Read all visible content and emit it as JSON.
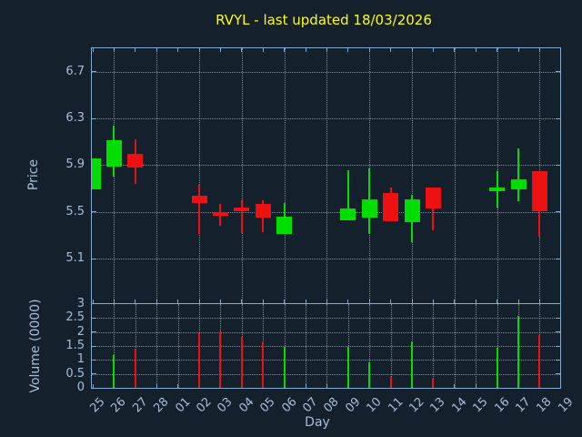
{
  "title": "RVYL - last updated 18/03/2026",
  "colors": {
    "background": "#15202d",
    "axis": "#86aacd",
    "text": "#a6bed8",
    "grid": "#dde6ee",
    "title": "#ffff00",
    "up": "#00dd00",
    "down": "#ee1111"
  },
  "chart_data": {
    "type": "candlestick+volume",
    "title": "RVYL - last updated 18/03/2026",
    "xlabel": "Day",
    "ylabel_price": "Price",
    "ylabel_volume": "Volume (0000)",
    "grid": "dotted",
    "days": [
      "25",
      "26",
      "27",
      "28",
      "01",
      "02",
      "03",
      "04",
      "05",
      "06",
      "07",
      "08",
      "09",
      "10",
      "11",
      "12",
      "13",
      "14",
      "15",
      "16",
      "17",
      "18",
      "19"
    ],
    "price_ticks": [
      6.7,
      6.3,
      5.9,
      5.5,
      5.1
    ],
    "price_range": [
      4.72,
      6.9
    ],
    "volume_ticks": [
      3,
      2.5,
      2,
      1.5,
      1,
      0.5,
      0
    ],
    "volume_range": [
      0,
      3
    ],
    "price_grid_days": [
      "26",
      "28",
      "02",
      "04",
      "06",
      "08",
      "10",
      "12",
      "14",
      "16",
      "18"
    ],
    "candles": [
      {
        "day": "25",
        "open": 5.69,
        "high": 5.96,
        "low": 5.69,
        "close": 5.96,
        "volume": 0
      },
      {
        "day": "26",
        "open": 5.89,
        "high": 6.24,
        "low": 5.8,
        "close": 6.11,
        "volume": 1.17
      },
      {
        "day": "27",
        "open": 6.0,
        "high": 6.12,
        "low": 5.74,
        "close": 5.88,
        "volume": 1.41
      },
      {
        "day": "02",
        "open": 5.64,
        "high": 5.73,
        "low": 5.31,
        "close": 5.58,
        "volume": 1.95
      },
      {
        "day": "03",
        "open": 5.5,
        "high": 5.57,
        "low": 5.38,
        "close": 5.47,
        "volume": 2.03
      },
      {
        "day": "04",
        "open": 5.54,
        "high": 5.6,
        "low": 5.32,
        "close": 5.51,
        "volume": 1.81
      },
      {
        "day": "05",
        "open": 5.57,
        "high": 5.6,
        "low": 5.33,
        "close": 5.45,
        "volume": 1.65
      },
      {
        "day": "06",
        "open": 5.31,
        "high": 5.58,
        "low": 5.31,
        "close": 5.46,
        "volume": 1.46
      },
      {
        "day": "09",
        "open": 5.43,
        "high": 5.86,
        "low": 5.43,
        "close": 5.53,
        "volume": 1.47
      },
      {
        "day": "10",
        "open": 5.45,
        "high": 5.87,
        "low": 5.31,
        "close": 5.61,
        "volume": 0.9
      },
      {
        "day": "11",
        "open": 5.66,
        "high": 5.71,
        "low": 5.42,
        "close": 5.42,
        "volume": 0.38
      },
      {
        "day": "12",
        "open": 5.41,
        "high": 5.65,
        "low": 5.24,
        "close": 5.61,
        "volume": 1.65
      },
      {
        "day": "13",
        "open": 5.71,
        "high": 5.71,
        "low": 5.34,
        "close": 5.53,
        "volume": 0.32
      },
      {
        "day": "16",
        "open": 5.68,
        "high": 5.85,
        "low": 5.54,
        "close": 5.71,
        "volume": 1.43
      },
      {
        "day": "17",
        "open": 5.69,
        "high": 6.04,
        "low": 5.59,
        "close": 5.78,
        "volume": 2.59
      },
      {
        "day": "18",
        "open": 5.85,
        "high": 5.85,
        "low": 5.29,
        "close": 5.51,
        "volume": 1.89
      }
    ]
  }
}
